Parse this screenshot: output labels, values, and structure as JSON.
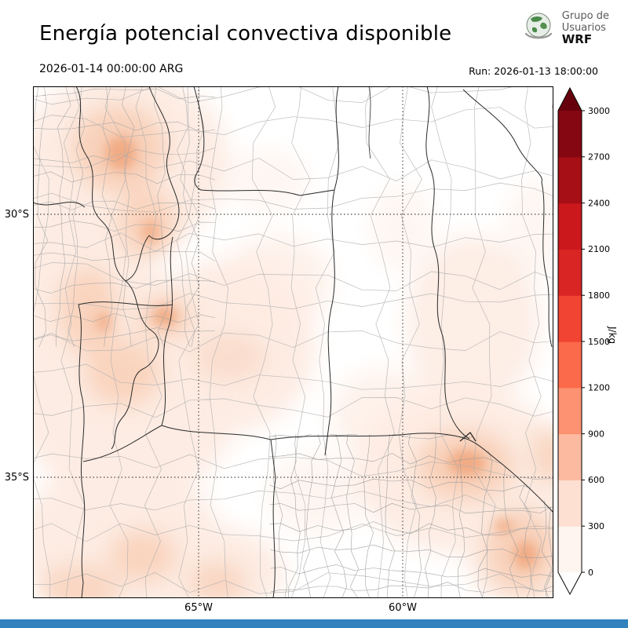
{
  "header": {
    "title": "Energía potencial convectiva disponible",
    "logo": {
      "line1": "Grupo de",
      "line2": "Usuarios",
      "line3": "WRF"
    }
  },
  "subheader": {
    "valid_time": "2026-01-14 00:00:00 ARG",
    "run": "Run: 2026-01-13 18:00:00"
  },
  "map": {
    "lat_labels": [
      {
        "text": "30°S"
      },
      {
        "text": "35°S"
      }
    ],
    "lon_labels": [
      {
        "text": "65°W"
      },
      {
        "text": "60°W"
      }
    ],
    "shading": {
      "light": "#fdece3",
      "medium": "#f8d0b9",
      "strong": "#f1ab84"
    }
  },
  "colorbar": {
    "unit": "J/kg",
    "ticks": [
      "0",
      "300",
      "600",
      "900",
      "1200",
      "1500",
      "1800",
      "2100",
      "2400",
      "2700",
      "3000"
    ],
    "segment_colors": [
      "#fff5f0",
      "#fee0d2",
      "#fcbba1",
      "#fc9272",
      "#fb6a4a",
      "#f14432",
      "#d92523",
      "#cb181d",
      "#a50f15",
      "#840711"
    ],
    "over_color": "#67000d",
    "under_color": "#ffffff"
  },
  "chart_data": {
    "type": "heatmap",
    "title": "Energía potencial convectiva disponible",
    "unit": "J/kg",
    "scale_ticks": [
      0,
      300,
      600,
      900,
      1200,
      1500,
      1800,
      2100,
      2400,
      2700,
      3000
    ],
    "valid_time": "2026-01-14 00:00:00 ARG",
    "run": "Run: 2026-01-13 18:00:00",
    "lat_gridlines": [
      "30°S",
      "35°S"
    ],
    "lon_gridlines": [
      "65°W",
      "60°W"
    ],
    "legend_position": "right-vertical-colorbar"
  },
  "footer": {
    "color": "#3282bd"
  }
}
